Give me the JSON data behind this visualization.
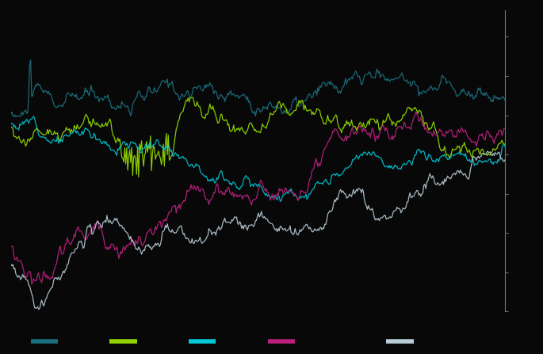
{
  "background_color": "#080808",
  "line_colors": [
    "#1a6e7e",
    "#8fd400",
    "#00c8d7",
    "#b8207c",
    "#b8cdd8"
  ],
  "n_points": 500,
  "axis_color": "#777777",
  "legend_colors": [
    "#1a6e7e",
    "#8fd400",
    "#00c8d7",
    "#b8207c",
    "#b8cdd8"
  ],
  "figsize": [
    6.85,
    4.47
  ],
  "dpi": 100
}
